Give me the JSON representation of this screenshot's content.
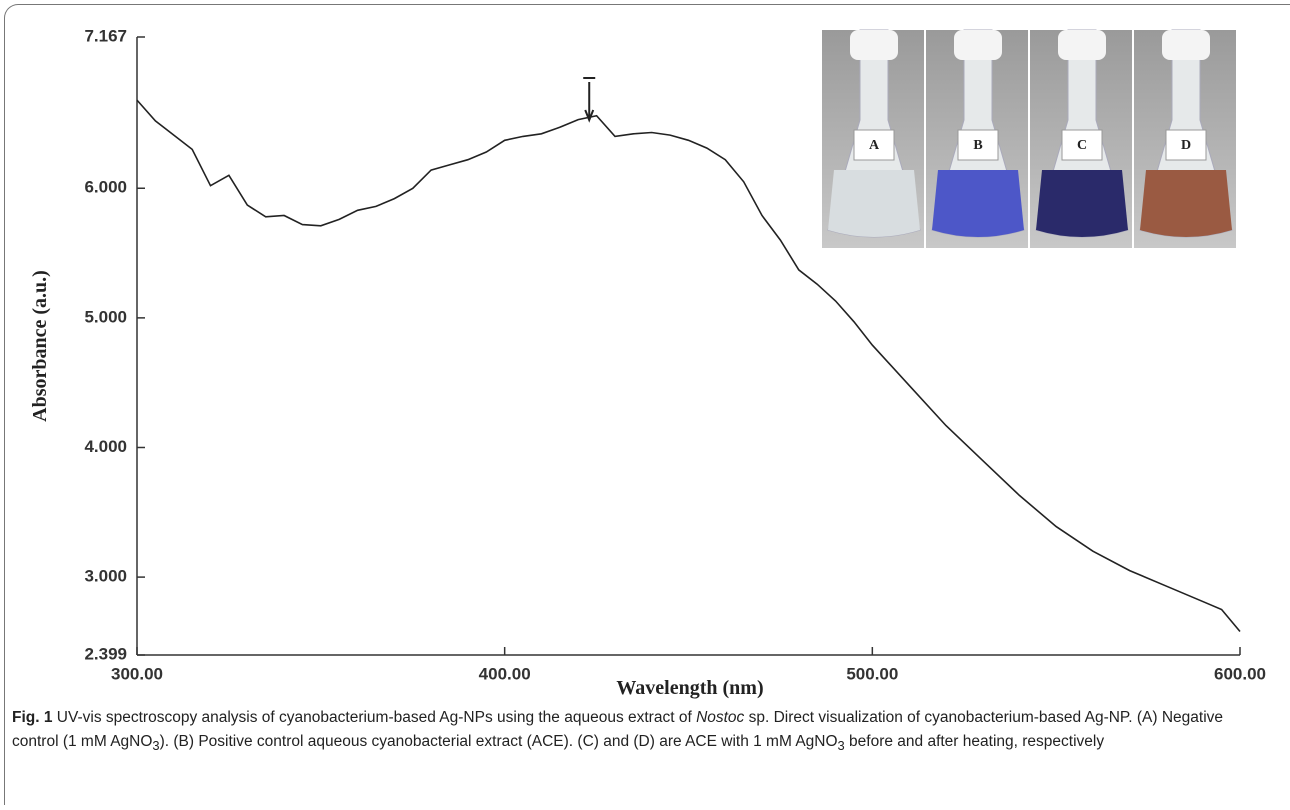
{
  "chart_data": {
    "type": "line",
    "y_label": "Absorbance (a.u.)",
    "x_label": "Wavelength (nm)",
    "x": [
      300,
      305,
      310,
      315,
      320,
      325,
      330,
      335,
      340,
      345,
      350,
      355,
      360,
      365,
      370,
      375,
      380,
      385,
      390,
      395,
      400,
      405,
      410,
      415,
      420,
      425,
      430,
      435,
      440,
      445,
      450,
      455,
      460,
      465,
      470,
      475,
      480,
      485,
      490,
      495,
      500,
      510,
      520,
      530,
      540,
      550,
      560,
      570,
      580,
      590,
      595,
      600
    ],
    "series": [
      {
        "color": "#222222",
        "values": [
          6.68,
          6.52,
          6.41,
          6.3,
          6.02,
          6.1,
          5.87,
          5.78,
          5.79,
          5.72,
          5.71,
          5.76,
          5.83,
          5.86,
          5.92,
          6.0,
          6.14,
          6.18,
          6.22,
          6.28,
          6.37,
          6.4,
          6.42,
          6.47,
          6.53,
          6.56,
          6.4,
          6.42,
          6.43,
          6.41,
          6.37,
          6.31,
          6.22,
          6.05,
          5.79,
          5.6,
          5.37,
          5.26,
          5.13,
          4.97,
          4.79,
          4.48,
          4.17,
          3.9,
          3.63,
          3.39,
          3.2,
          3.05,
          2.93,
          2.81,
          2.75,
          2.58
        ]
      }
    ],
    "xlim": [
      300,
      600
    ],
    "ylim": [
      2.399,
      7.167
    ],
    "xticks": [
      {
        "value": 300,
        "label": "300.00"
      },
      {
        "value": 400,
        "label": "400.00"
      },
      {
        "value": 500,
        "label": "500.00"
      },
      {
        "value": 600,
        "label": "600.00"
      }
    ],
    "yticks": [
      2.399,
      {
        "value": 3,
        "label": "3.000"
      },
      {
        "value": 4,
        "label": "4.000"
      },
      {
        "value": 5,
        "label": "5.000"
      },
      {
        "value": 6,
        "label": "6.000"
      },
      7.167
    ],
    "peak_x": 423,
    "inset_labels": [
      "A",
      "B",
      "C",
      "D"
    ]
  },
  "caption": {
    "label": "Fig. 1",
    "parts": [
      " UV-vis spectroscopy analysis of cyanobacterium-based Ag-NPs using the aqueous extract of ",
      "Nostoc",
      " sp. Direct visualization of cyanobacterium-based Ag-NP. (A) Negative control (1 mM AgNO",
      "3",
      "). (B) Positive control aqueous cyanobacterial extract (ACE). (C) and (D) are ACE with 1 mM AgNO",
      "3",
      " before and after heating, respectively"
    ]
  }
}
